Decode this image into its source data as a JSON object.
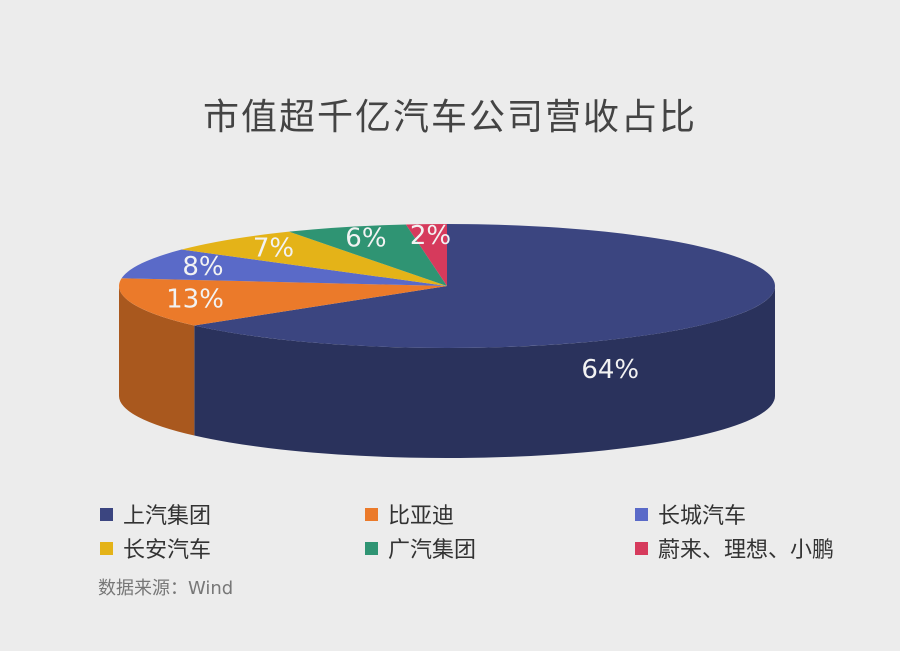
{
  "chart_data": {
    "type": "pie",
    "title": "市值超千亿汽车公司营收占比",
    "categories": [
      "上汽集团",
      "比亚迪",
      "长城汽车",
      "长安汽车",
      "广汽集团",
      "蔚来、理想、小鹏"
    ],
    "values": [
      64,
      13,
      8,
      7,
      6,
      2
    ],
    "labels": [
      "64%",
      "13%",
      "8%",
      "7%",
      "6%",
      "2%"
    ],
    "unit": "%",
    "legend_position": "bottom",
    "colors": [
      "#3b4580",
      "#eb7a2a",
      "#5a6ac8",
      "#e4b318",
      "#2f9473",
      "#d63a5c"
    ]
  },
  "source": "数据来源：Wind"
}
